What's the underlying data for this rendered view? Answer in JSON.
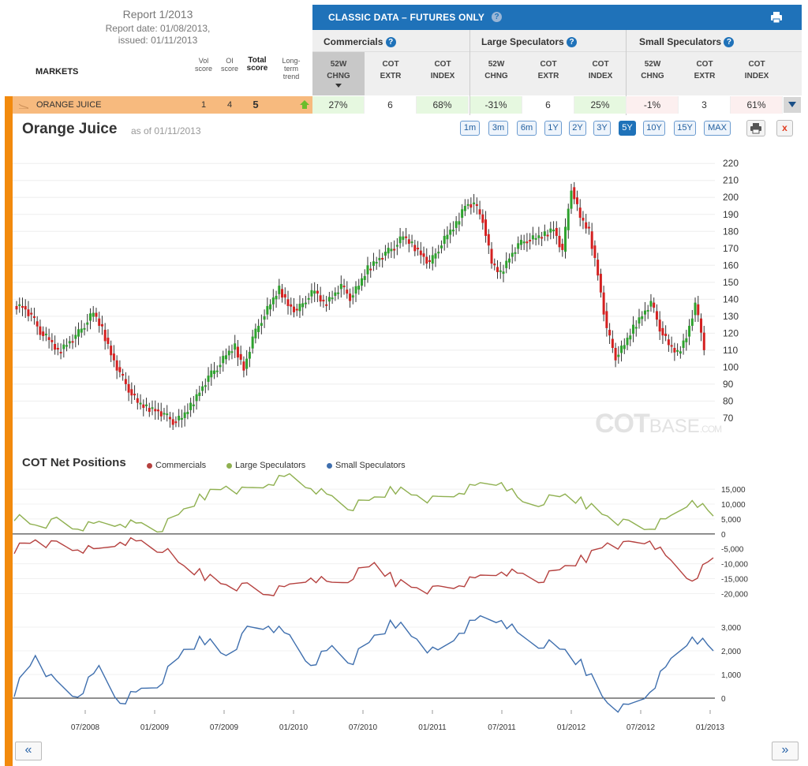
{
  "report": {
    "title": "Report 1/2013",
    "date_line": "Report date: 01/08/2013,",
    "issued_line": "issued: 01/11/2013"
  },
  "markets_header": {
    "label": "MARKETS",
    "vol_score": [
      "Vol",
      "score"
    ],
    "oi_score": [
      "OI",
      "score"
    ],
    "total_score": [
      "Total",
      "score"
    ],
    "long_term": [
      "Long-",
      "term",
      "trend"
    ]
  },
  "classic": {
    "title": "CLASSIC DATA – FUTURES ONLY",
    "help": "?",
    "groups": [
      "Commercials",
      "Large Speculators",
      "Small Speculators"
    ],
    "columns": [
      [
        "52W",
        "CHNG"
      ],
      [
        "COT",
        "EXTR"
      ],
      [
        "COT",
        "INDEX"
      ],
      [
        "52W",
        "CHNG"
      ],
      [
        "COT",
        "EXTR"
      ],
      [
        "COT",
        "INDEX"
      ],
      [
        "52W",
        "CHNG"
      ],
      [
        "COT",
        "EXTR"
      ],
      [
        "COT",
        "INDEX"
      ]
    ]
  },
  "market_row": {
    "name": "ORANGE JUICE",
    "vol": "1",
    "oi": "4",
    "total": "5",
    "cells": [
      "27%",
      "6",
      "68%",
      "-31%",
      "6",
      "25%",
      "-1%",
      "3",
      "61%"
    ]
  },
  "chart_header": {
    "title": "Orange Juice",
    "as_of": "as of 01/11/2013",
    "ranges": [
      "1m",
      "3m",
      "6m",
      "1Y",
      "2Y",
      "3Y",
      "5Y",
      "10Y",
      "15Y",
      "MAX"
    ],
    "active_range": "5Y",
    "close_label": "x"
  },
  "watermark": {
    "cot": "COT",
    "base": "BASE",
    "com": ".COM"
  },
  "cot_section": {
    "title": "COT Net Positions",
    "legend": [
      {
        "name": "Commercials",
        "color": "#b5413f"
      },
      {
        "name": "Large Speculators",
        "color": "#8fb050"
      },
      {
        "name": "Small Speculators",
        "color": "#3f6fae"
      }
    ]
  },
  "nav": {
    "prev": "«",
    "next": "»"
  },
  "colors": {
    "up": "#2ea12e",
    "down": "#d42020",
    "accent": "#1f72b9",
    "orange": "#f28a0d"
  },
  "chart_data": [
    {
      "type": "candlestick",
      "title": "Orange Juice",
      "y_ticks": [
        70,
        80,
        90,
        100,
        110,
        120,
        130,
        140,
        150,
        160,
        170,
        180,
        190,
        200,
        210,
        220
      ],
      "ylim": [
        63,
        228
      ],
      "x_range": [
        "2008-01",
        "2013-01"
      ],
      "close": [
        136,
        130,
        121,
        116,
        109,
        114,
        118,
        125,
        132,
        122,
        108,
        96,
        87,
        79,
        76,
        75,
        72,
        68,
        70,
        77,
        86,
        94,
        100,
        107,
        112,
        99,
        117,
        128,
        137,
        146,
        137,
        133,
        140,
        145,
        137,
        142,
        148,
        141,
        148,
        158,
        163,
        167,
        171,
        177,
        172,
        167,
        161,
        170,
        178,
        184,
        196,
        196,
        187,
        161,
        155,
        165,
        172,
        175,
        176,
        178,
        182,
        168,
        206,
        188,
        180,
        155,
        122,
        106,
        113,
        123,
        131,
        138,
        123,
        113,
        108,
        118,
        137,
        112
      ],
      "grid": true
    },
    {
      "type": "line",
      "title": "COT Net Positions",
      "y_ticks": [
        -20000,
        -15000,
        -10000,
        -5000,
        0,
        5000,
        10000,
        15000
      ],
      "x_ticks": [
        "07/2008",
        "01/2009",
        "07/2009",
        "01/2010",
        "07/2010",
        "01/2011",
        "07/2011",
        "01/2012",
        "07/2012",
        "01/2013"
      ],
      "series": [
        {
          "name": "Commercials",
          "values": [
            -5000,
            -2000,
            -4000,
            -5000,
            -6000,
            -2000,
            -3000,
            -5000,
            -11000,
            -14000,
            -17000,
            -18000,
            -20000,
            -18000,
            -14000,
            -17000,
            -14000,
            -10000,
            -16000,
            -18000,
            -19000,
            -17000,
            -15000,
            -12000,
            -14000,
            -15000,
            -11000,
            -8000,
            -3000,
            -4000,
            -2000,
            -10000,
            -15000,
            -8000
          ]
        },
        {
          "name": "Large Speculators",
          "values": [
            6000,
            3000,
            4000,
            2000,
            3000,
            4000,
            3000,
            2000,
            8000,
            13000,
            16000,
            14000,
            17000,
            19000,
            16000,
            12000,
            9000,
            12000,
            15000,
            13000,
            11000,
            14000,
            16000,
            18000,
            10000,
            11000,
            13000,
            10000,
            6000,
            3000,
            2000,
            5000,
            12000,
            6000
          ]
        },
        {
          "name": "Small Speculators",
          "values": [
            300,
            1800,
            500,
            100,
            1200,
            -100,
            300,
            800,
            2000,
            2500,
            1800,
            2800,
            3100,
            2500,
            1500,
            2100,
            1600,
            2600,
            3200,
            2500,
            1800,
            2800,
            3300,
            3400,
            2500,
            2300,
            2000,
            1200,
            -200,
            -500,
            300,
            1500,
            2700,
            2000
          ]
        }
      ],
      "ylim_top": [
        -22000,
        19000
      ],
      "ylim_bottom": [
        -500,
        3500
      ],
      "bottom_y_ticks": [
        0,
        1000,
        2000,
        3000
      ],
      "grid": true
    }
  ]
}
